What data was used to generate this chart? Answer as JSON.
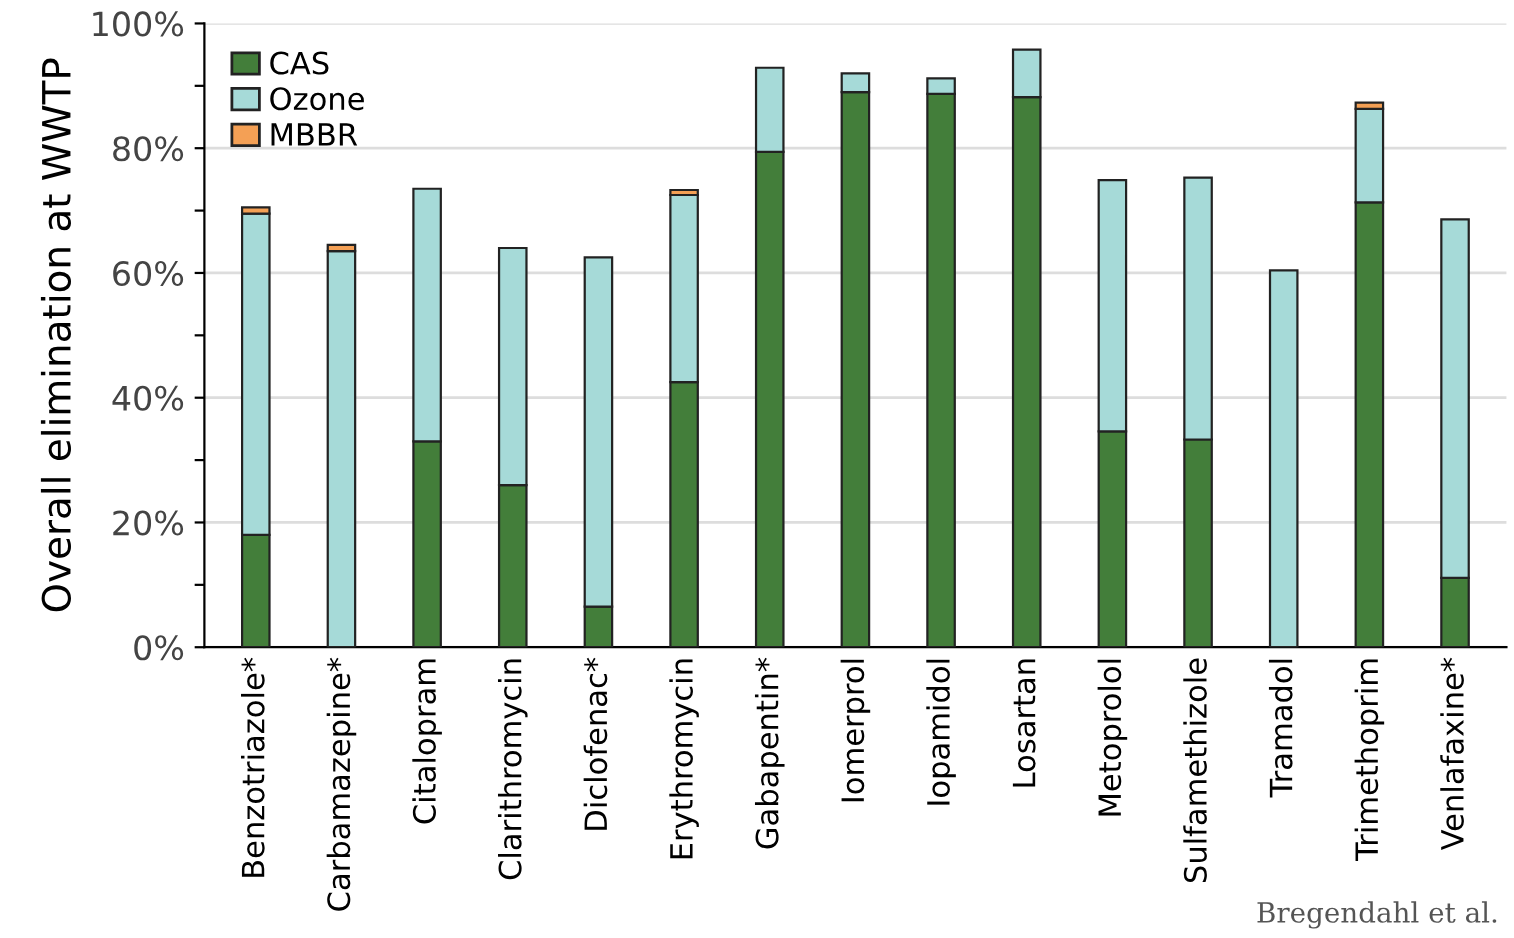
{
  "chart_data": {
    "type": "bar",
    "stacked": true,
    "ylabel": "Overall elimination at WWTP",
    "categories": [
      "Benzotriazole*",
      "Carbamazepine*",
      "Citalopram",
      "Clarithromycin",
      "Diclofenac*",
      "Erythromycin",
      "Gabapentin*",
      "Iomerprol",
      "Iopamidol",
      "Losartan",
      "Metoprolol",
      "Sulfamethizole",
      "Tramadol",
      "Trimethoprim",
      "Venlafaxine*"
    ],
    "series": [
      {
        "name": "CAS",
        "color": "#437e3a",
        "values": [
          18,
          null,
          33,
          26,
          6.5,
          42.5,
          79.4,
          89,
          88.7,
          88.2,
          34.6,
          33.3,
          null,
          71.3,
          11.1
        ]
      },
      {
        "name": "Ozone",
        "color": "#a6dad8",
        "values": [
          51.5,
          63.5,
          40.5,
          38,
          56,
          30,
          13.5,
          3,
          2.5,
          7.6,
          40.3,
          42,
          60.4,
          15,
          57.5
        ]
      },
      {
        "name": "MBBR",
        "color": "#f4a055",
        "values": [
          1,
          1,
          null,
          null,
          null,
          0.8,
          null,
          null,
          null,
          null,
          null,
          null,
          null,
          1,
          null
        ]
      }
    ],
    "ylim": [
      0,
      100
    ],
    "yticks": [
      {
        "value": 0,
        "label": "0%"
      },
      {
        "value": 10,
        "label": null
      },
      {
        "value": 20,
        "label": "20%"
      },
      {
        "value": 30,
        "label": null
      },
      {
        "value": 40,
        "label": "40%"
      },
      {
        "value": 50,
        "label": null
      },
      {
        "value": 60,
        "label": "60%"
      },
      {
        "value": 70,
        "label": null
      },
      {
        "value": 80,
        "label": "80%"
      },
      {
        "value": 90,
        "label": null
      },
      {
        "value": 100,
        "label": "100%"
      }
    ],
    "grid": "y",
    "legend": "top left",
    "annotations": [
      "Bregendahl et al."
    ]
  }
}
